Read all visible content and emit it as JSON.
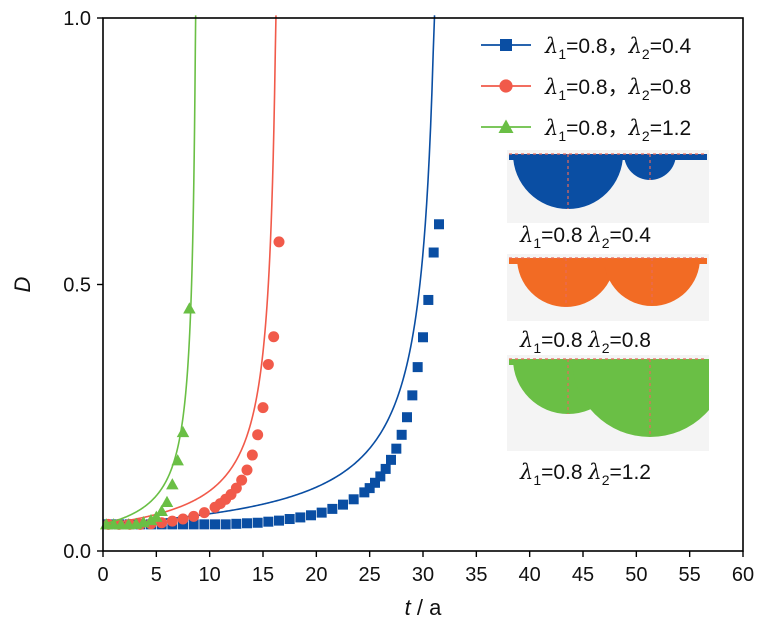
{
  "chart_data": {
    "type": "line",
    "xlabel": "t / a",
    "ylabel": "D",
    "xlim": [
      0,
      60
    ],
    "ylim": [
      0,
      1
    ],
    "xticks": [
      "0",
      "5",
      "10",
      "15",
      "20",
      "25",
      "30",
      "35",
      "40",
      "45",
      "50",
      "55",
      "60"
    ],
    "yticks": [
      "0.0",
      "0.5",
      "1.0"
    ],
    "grid": false,
    "legend_position": "top-right",
    "series": [
      {
        "name": "λ1=0.8， λ2=0.4",
        "lam1": "0.8",
        "lam2": "0.4",
        "color": "#0a4ea3",
        "marker": "square",
        "t_fail": 32.2,
        "x": [
          0.5,
          1.5,
          2.5,
          3.5,
          4.5,
          5.5,
          6.5,
          7.5,
          8.5,
          9.5,
          10.5,
          11.5,
          12.5,
          13.5,
          14.5,
          15.5,
          16.5,
          17.5,
          18.5,
          19.5,
          20.5,
          21.5,
          22.5,
          23.5,
          24.5,
          25.0,
          25.5,
          26.0,
          26.5,
          27.0,
          27.5,
          28.0,
          28.5,
          29.0,
          29.5,
          30.0,
          30.5,
          31.0,
          31.5
        ],
        "y": [
          0.05,
          0.05,
          0.05,
          0.05,
          0.05,
          0.05,
          0.05,
          0.05,
          0.05,
          0.05,
          0.05,
          0.05,
          0.051,
          0.052,
          0.053,
          0.055,
          0.057,
          0.06,
          0.063,
          0.067,
          0.072,
          0.079,
          0.087,
          0.097,
          0.11,
          0.118,
          0.128,
          0.14,
          0.154,
          0.171,
          0.192,
          0.218,
          0.251,
          0.292,
          0.345,
          0.401,
          0.471,
          0.56,
          0.613
        ]
      },
      {
        "name": "λ1=0.8， λ2=0.8",
        "lam1": "0.8",
        "lam2": "0.8",
        "color": "#f15a4a",
        "marker": "circle",
        "t_fail": 16.8,
        "x": [
          0.5,
          1.5,
          2.5,
          3.5,
          4.5,
          5.5,
          6.5,
          7.5,
          8.5,
          9.5,
          10.5,
          11.0,
          11.5,
          12.0,
          12.5,
          13.0,
          13.5,
          14.0,
          14.5,
          15.0,
          15.5,
          16.0,
          16.5
        ],
        "y": [
          0.05,
          0.05,
          0.05,
          0.05,
          0.051,
          0.053,
          0.056,
          0.06,
          0.065,
          0.072,
          0.082,
          0.089,
          0.097,
          0.106,
          0.118,
          0.133,
          0.152,
          0.18,
          0.218,
          0.269,
          0.35,
          0.402,
          0.58
        ]
      },
      {
        "name": "λ1=0.8， λ2=1.2",
        "lam1": "0.8",
        "lam2": "1.2",
        "color": "#6abf45",
        "marker": "triangle",
        "t_fail": 9.0,
        "x": [
          0.3,
          1.0,
          1.7,
          2.4,
          3.1,
          3.8,
          4.5,
          5.0,
          5.5,
          6.0,
          6.5,
          7.0,
          7.5,
          8.1
        ],
        "y": [
          0.05,
          0.05,
          0.05,
          0.05,
          0.051,
          0.054,
          0.058,
          0.064,
          0.075,
          0.092,
          0.125,
          0.17,
          0.223,
          0.455
        ]
      }
    ]
  },
  "insets": [
    {
      "lam1": "0.8",
      "lam2": "0.4",
      "color": "#0a4ea3"
    },
    {
      "lam1": "0.8",
      "lam2": "0.8",
      "color": "#f26b24"
    },
    {
      "lam1": "0.8",
      "lam2": "1.2",
      "color": "#6abf45"
    }
  ],
  "labels": {
    "lambda": "λ",
    "sub1": "1",
    "sub2": "2",
    "eq": "=",
    "legend_sep": "，"
  }
}
